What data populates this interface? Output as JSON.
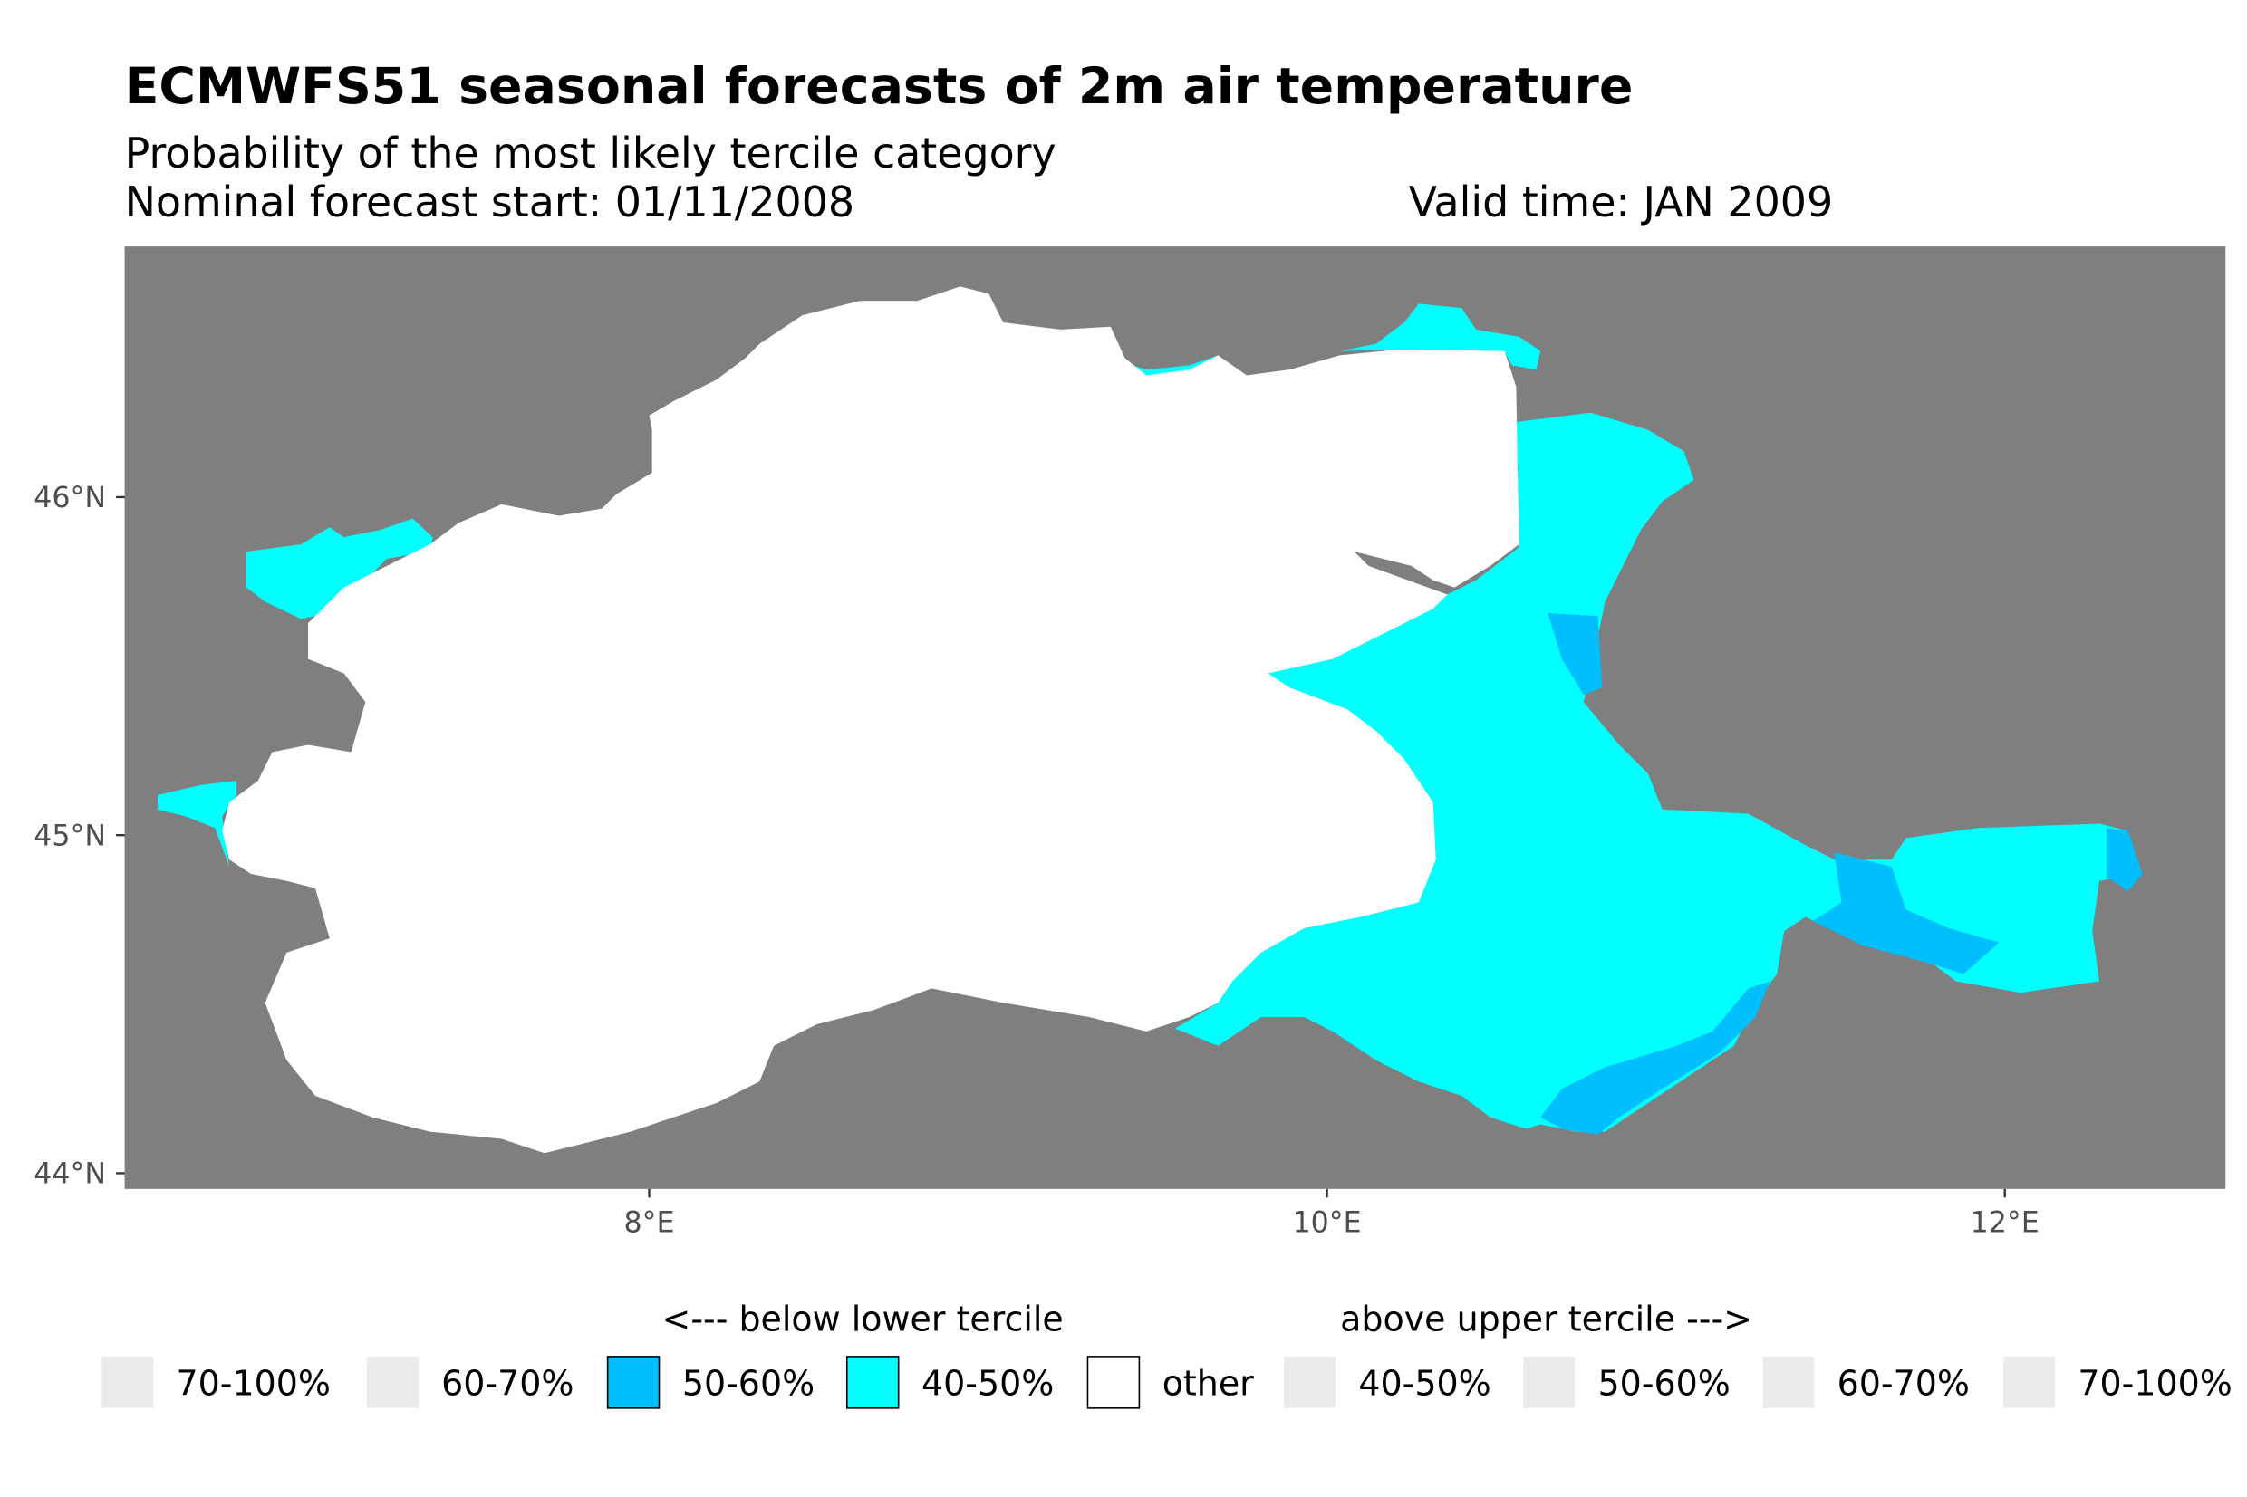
{
  "chart_data": {
    "type": "map",
    "title": "ECMWFS51 seasonal forecasts of 2m air temperature",
    "subtitle": "Probability of the most likely tercile category",
    "forecast_start": "Nominal forecast start: 01/11/2008",
    "valid_time": "Valid time: JAN 2009",
    "x_ticks": [
      "8°E",
      "10°E",
      "12°E"
    ],
    "y_ticks": [
      "46°N",
      "45°N",
      "44°N"
    ],
    "xlim": [
      6.45,
      12.65
    ],
    "ylim": [
      43.95,
      46.74
    ],
    "background_color": "#7f7f7f",
    "legend": {
      "below_heading": "<--- below lower tercile",
      "above_heading": "above upper tercile --->",
      "items": [
        {
          "label": "70-100%",
          "color": "#ebebeb"
        },
        {
          "label": "60-70%",
          "color": "#ebebeb"
        },
        {
          "label": "50-60%",
          "color": "#00bfff"
        },
        {
          "label": "40-50%",
          "color": "#00ffff"
        },
        {
          "label": "other",
          "color": "#ffffff"
        },
        {
          "label": "40-50%",
          "color": "#ebebeb"
        },
        {
          "label": "50-60%",
          "color": "#ebebeb"
        },
        {
          "label": "60-70%",
          "color": "#ebebeb"
        },
        {
          "label": "70-100%",
          "color": "#ebebeb"
        }
      ]
    }
  }
}
